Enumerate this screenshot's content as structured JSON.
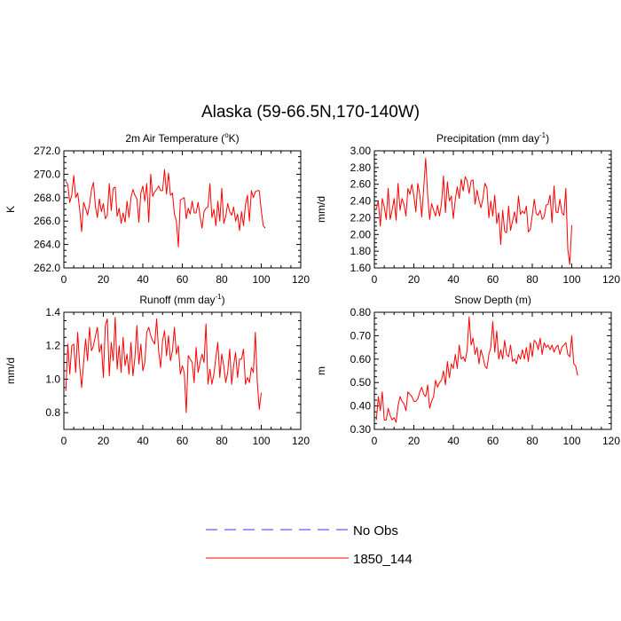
{
  "title": "Alaska (59-66.5N,170-140W)",
  "legend": {
    "entries": [
      {
        "label": "No Obs",
        "color": "#3333ff",
        "dash": true
      },
      {
        "label": "1850_144",
        "color": "#ff0000",
        "dash": false
      }
    ]
  },
  "chart_data": [
    {
      "type": "line",
      "title": "2m Air Temperature (oK)",
      "title_parts": {
        "before": "2m Air Temperature (",
        "sup": "o",
        "after": "K)"
      },
      "ylabel": "K",
      "xlim": [
        0,
        120
      ],
      "ylim": [
        262,
        272
      ],
      "xticks": [
        0,
        20,
        40,
        60,
        80,
        100,
        120
      ],
      "xtick_labels": [
        "0",
        "20",
        "40",
        "60",
        "80",
        "100",
        "120"
      ],
      "yticks": [
        262,
        264,
        266,
        268,
        270,
        272
      ],
      "ytick_labels": [
        "262.0",
        "264.0",
        "266.0",
        "268.0",
        "270.0",
        "272.0"
      ],
      "series": [
        {
          "name": "1850_144",
          "color": "#ff0000",
          "x_start": 1,
          "values": [
            269.4,
            269.1,
            267.6,
            268.2,
            269.9,
            268.0,
            268.4,
            267.0,
            265.1,
            267.6,
            267.1,
            266.5,
            267.4,
            268.7,
            269.3,
            267.2,
            266.3,
            267.9,
            266.8,
            267.5,
            266.2,
            266.5,
            269.2,
            266.9,
            268.8,
            268.9,
            266.4,
            267.1,
            265.8,
            266.7,
            265.9,
            267.7,
            266.3,
            268.0,
            268.7,
            268.2,
            267.9,
            265.9,
            268.4,
            269.0,
            267.7,
            269.2,
            265.9,
            270.0,
            268.1,
            268.5,
            268.7,
            269.0,
            268.6,
            268.6,
            270.4,
            268.3,
            270.1,
            268.2,
            268.4,
            266.6,
            266.0,
            263.8,
            267.8,
            267.9,
            268.0,
            266.2,
            267.1,
            266.6,
            267.7,
            266.7,
            266.7,
            267.6,
            266.4,
            265.4,
            266.8,
            267.1,
            267.2,
            269.2,
            266.3,
            267.0,
            265.6,
            267.7,
            266.0,
            268.8,
            265.8,
            266.4,
            267.5,
            266.8,
            266.5,
            267.2,
            266.0,
            266.6,
            265.2,
            266.8,
            265.6,
            267.4,
            268.2,
            266.0,
            268.6,
            268.0,
            268.5,
            268.6,
            268.6,
            266.9,
            265.6,
            265.4
          ]
        }
      ]
    },
    {
      "type": "line",
      "title": "Precipitation (mm day-1)",
      "title_parts": {
        "before": "Precipitation (mm day",
        "sup": "-1",
        "after": ")"
      },
      "ylabel": "mm/d",
      "xlim": [
        0,
        120
      ],
      "ylim": [
        1.6,
        3.0
      ],
      "xticks": [
        0,
        20,
        40,
        60,
        80,
        100,
        120
      ],
      "xtick_labels": [
        "0",
        "20",
        "40",
        "60",
        "80",
        "100",
        "120"
      ],
      "yticks": [
        1.6,
        1.8,
        2.0,
        2.2,
        2.4,
        2.6,
        2.8,
        3.0
      ],
      "ytick_labels": [
        "1.60",
        "1.80",
        "2.00",
        "2.20",
        "2.40",
        "2.60",
        "2.80",
        "3.00"
      ],
      "series": [
        {
          "name": "1850_144",
          "color": "#ff0000",
          "x_start": 1,
          "values": [
            2.31,
            2.4,
            2.1,
            2.43,
            2.33,
            2.18,
            2.55,
            2.18,
            2.29,
            2.43,
            2.17,
            2.61,
            2.29,
            2.43,
            2.36,
            2.22,
            2.55,
            2.48,
            2.6,
            2.46,
            2.27,
            2.61,
            2.48,
            2.21,
            2.56,
            2.91,
            2.47,
            2.18,
            2.37,
            2.29,
            2.22,
            2.35,
            2.22,
            2.37,
            2.7,
            2.26,
            2.63,
            2.4,
            2.46,
            2.19,
            2.42,
            2.57,
            2.43,
            2.66,
            2.52,
            2.69,
            2.64,
            2.49,
            2.64,
            2.65,
            2.36,
            2.53,
            2.41,
            2.32,
            2.43,
            2.61,
            2.56,
            2.2,
            2.4,
            2.22,
            2.47,
            2.13,
            2.26,
            1.88,
            2.29,
            2.04,
            2.02,
            2.34,
            2.05,
            2.16,
            2.27,
            2.13,
            2.46,
            2.24,
            2.28,
            2.25,
            2.34,
            2.03,
            2.06,
            2.23,
            2.42,
            2.25,
            2.23,
            2.29,
            2.18,
            2.21,
            2.35,
            2.36,
            2.47,
            2.14,
            2.58,
            2.27,
            2.26,
            2.42,
            2.26,
            2.23,
            2.55,
            1.82,
            1.64,
            2.11
          ]
        }
      ]
    },
    {
      "type": "line",
      "title": "Runoff (mm day-1)",
      "title_parts": {
        "before": "Runoff (mm day",
        "sup": "-1",
        "after": ")"
      },
      "ylabel": "mm/d",
      "xlim": [
        0,
        120
      ],
      "ylim": [
        0.7,
        1.4
      ],
      "xticks": [
        0,
        20,
        40,
        60,
        80,
        100,
        120
      ],
      "xtick_labels": [
        "0",
        "20",
        "40",
        "60",
        "80",
        "100",
        "120"
      ],
      "yticks": [
        0.8,
        1.0,
        1.2,
        1.4
      ],
      "ytick_labels": [
        "0.8",
        "1.0",
        "1.2",
        "1.4"
      ],
      "series": [
        {
          "name": "1850_144",
          "color": "#ff0000",
          "x_start": 1,
          "values": [
            0.93,
            1.21,
            1.03,
            1.2,
            1.21,
            1.04,
            1.28,
            1.08,
            0.95,
            1.1,
            1.24,
            1.11,
            1.31,
            1.17,
            1.2,
            1.26,
            1.31,
            1.16,
            1.21,
            1.01,
            1.32,
            1.36,
            1.02,
            1.22,
            1.11,
            1.37,
            1.06,
            1.2,
            1.04,
            1.25,
            1.08,
            1.15,
            1.03,
            1.22,
            1.02,
            1.13,
            1.32,
            1.09,
            1.21,
            1.05,
            1.1,
            1.28,
            1.31,
            1.26,
            1.23,
            1.21,
            1.36,
            1.17,
            1.07,
            1.23,
            1.29,
            1.14,
            1.26,
            1.11,
            1.17,
            1.31,
            1.15,
            1.2,
            1.03,
            1.08,
            1.04,
            0.8,
            1.14,
            1.12,
            1.1,
            0.98,
            1.19,
            1.04,
            1.1,
            1.15,
            1.1,
            1.33,
            0.97,
            1.06,
            0.97,
            1.03,
            1.13,
            1.22,
            1.01,
            1.15,
            1.08,
            0.98,
            1.04,
            1.18,
            0.97,
            1.08,
            1.16,
            1.01,
            1.12,
            1.12,
            1.18,
            0.97,
            1.01,
            0.98,
            1.07,
            1.04,
            1.28,
            0.98,
            0.82,
            0.92
          ]
        }
      ]
    },
    {
      "type": "line",
      "title": "Snow Depth (m)",
      "ylabel": "m",
      "xlim": [
        0,
        120
      ],
      "ylim": [
        0.3,
        0.8
      ],
      "xticks": [
        0,
        20,
        40,
        60,
        80,
        100,
        120
      ],
      "xtick_labels": [
        "0",
        "20",
        "40",
        "60",
        "80",
        "100",
        "120"
      ],
      "yticks": [
        0.3,
        0.4,
        0.5,
        0.6,
        0.7,
        0.8
      ],
      "ytick_labels": [
        "0.30",
        "0.40",
        "0.50",
        "0.60",
        "0.70",
        "0.80"
      ],
      "series": [
        {
          "name": "1850_144",
          "color": "#ff0000",
          "x_start": 1,
          "values": [
            0.34,
            0.44,
            0.38,
            0.46,
            0.34,
            0.34,
            0.39,
            0.36,
            0.34,
            0.35,
            0.33,
            0.4,
            0.44,
            0.42,
            0.41,
            0.38,
            0.46,
            0.45,
            0.44,
            0.42,
            0.42,
            0.43,
            0.46,
            0.48,
            0.45,
            0.44,
            0.49,
            0.39,
            0.42,
            0.44,
            0.51,
            0.48,
            0.5,
            0.51,
            0.55,
            0.49,
            0.59,
            0.52,
            0.58,
            0.56,
            0.62,
            0.56,
            0.66,
            0.6,
            0.61,
            0.59,
            0.64,
            0.78,
            0.66,
            0.69,
            0.62,
            0.65,
            0.58,
            0.64,
            0.61,
            0.57,
            0.56,
            0.62,
            0.65,
            0.76,
            0.63,
            0.72,
            0.6,
            0.64,
            0.6,
            0.68,
            0.62,
            0.61,
            0.66,
            0.59,
            0.6,
            0.58,
            0.62,
            0.6,
            0.64,
            0.6,
            0.65,
            0.59,
            0.67,
            0.61,
            0.68,
            0.67,
            0.64,
            0.69,
            0.62,
            0.67,
            0.65,
            0.66,
            0.64,
            0.66,
            0.63,
            0.65,
            0.66,
            0.62,
            0.65,
            0.66,
            0.67,
            0.62,
            0.61,
            0.7,
            0.58,
            0.57,
            0.53
          ]
        }
      ]
    }
  ]
}
